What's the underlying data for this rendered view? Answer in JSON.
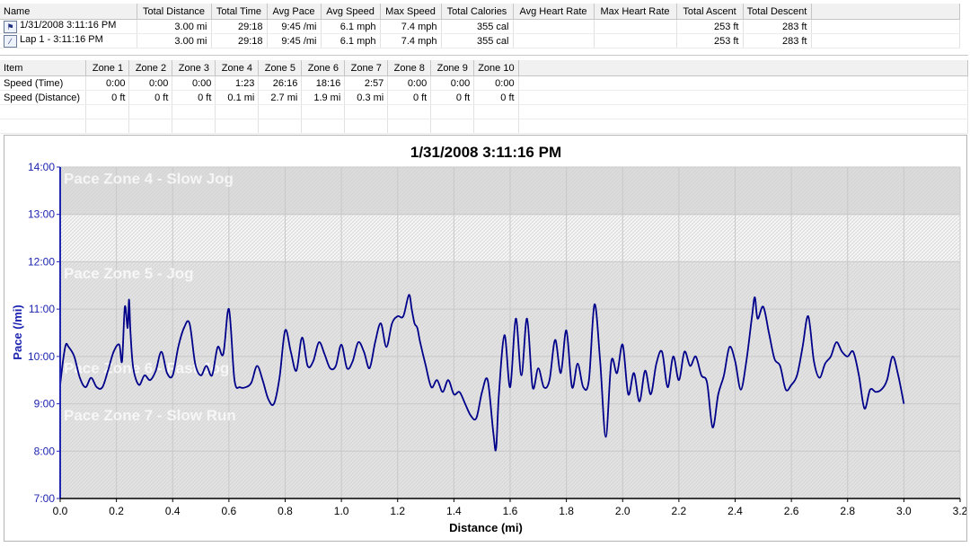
{
  "summary_table": {
    "columns": [
      "Name",
      "Total Distance",
      "Total Time",
      "Avg Pace",
      "Avg Speed",
      "Max Speed",
      "Total Calories",
      "Avg Heart Rate",
      "Max Heart Rate",
      "Total Ascent",
      "Total Descent"
    ],
    "rows": [
      {
        "icon": "runner-icon",
        "name": "1/31/2008 3:11:16 PM",
        "distance": "3.00 mi",
        "time": "29:18",
        "avg_pace": "9:45 /mi",
        "avg_speed": "6.1 mph",
        "max_speed": "7.4 mph",
        "calories": "355 cal",
        "avg_hr": "",
        "max_hr": "",
        "ascent": "253 ft",
        "descent": "283 ft"
      },
      {
        "icon": "lap-icon",
        "name": "Lap 1 - 3:11:16 PM",
        "distance": "3.00 mi",
        "time": "29:18",
        "avg_pace": "9:45 /mi",
        "avg_speed": "6.1 mph",
        "max_speed": "7.4 mph",
        "calories": "355 cal",
        "avg_hr": "",
        "max_hr": "",
        "ascent": "253 ft",
        "descent": "283 ft"
      }
    ]
  },
  "zone_table": {
    "columns": [
      "Item",
      "Zone 1",
      "Zone 2",
      "Zone 3",
      "Zone 4",
      "Zone 5",
      "Zone 6",
      "Zone 7",
      "Zone 8",
      "Zone 9",
      "Zone 10"
    ],
    "rows": [
      {
        "item": "Speed (Time)",
        "values": [
          "0:00",
          "0:00",
          "0:00",
          "1:23",
          "26:16",
          "18:16",
          "2:57",
          "0:00",
          "0:00",
          "0:00"
        ]
      },
      {
        "item": "Speed (Distance)",
        "values": [
          "0 ft",
          "0 ft",
          "0 ft",
          "0.1 mi",
          "2.7 mi",
          "1.9 mi",
          "0.3 mi",
          "0 ft",
          "0 ft",
          "0 ft"
        ]
      }
    ]
  },
  "chart_data": {
    "type": "line",
    "title": "1/31/2008 3:11:16 PM",
    "xlabel": "Distance (mi)",
    "ylabel": "Pace (/mi)",
    "xlim": [
      0,
      3.2
    ],
    "ylim": [
      7,
      14
    ],
    "x_ticks": [
      "0.0",
      "0.2",
      "0.4",
      "0.6",
      "0.8",
      "1.0",
      "1.2",
      "1.4",
      "1.6",
      "1.8",
      "2.0",
      "2.2",
      "2.4",
      "2.6",
      "2.8",
      "3.0",
      "3.2"
    ],
    "y_ticks": [
      "7:00",
      "8:00",
      "9:00",
      "10:00",
      "11:00",
      "12:00",
      "13:00",
      "14:00"
    ],
    "grid": true,
    "zones": [
      {
        "label": "Pace Zone 4 - Slow Jog",
        "from": 13,
        "to": 14
      },
      {
        "label": "",
        "from": 12,
        "to": 13
      },
      {
        "label": "Pace Zone 5 - Jog",
        "from": 11,
        "to": 12
      },
      {
        "label": "Pace Zone 6 - Fast Jog",
        "from": 9,
        "to": 10
      },
      {
        "label": "Pace Zone 7 - Slow Run",
        "from": 8,
        "to": 9
      }
    ],
    "zone_label_values": [
      13.8,
      11.8,
      9.8,
      8.8
    ],
    "zone_bands": [
      {
        "from": 13,
        "to": 14,
        "fill": "#dcdcdc"
      },
      {
        "from": 12,
        "to": 13,
        "fill": "#f7f7f7"
      },
      {
        "from": 7,
        "to": 12,
        "fill": "#e3e3e3"
      }
    ],
    "line_color": "#00008b",
    "axis_color": "#1c24b0",
    "series": [
      {
        "x": [
          0.0,
          0.01,
          0.02,
          0.03,
          0.05,
          0.07,
          0.09,
          0.11,
          0.13,
          0.15,
          0.17,
          0.19,
          0.21,
          0.22,
          0.23,
          0.24,
          0.245,
          0.25,
          0.26,
          0.28,
          0.3,
          0.32,
          0.34,
          0.36,
          0.38,
          0.4,
          0.42,
          0.44,
          0.46,
          0.48,
          0.5,
          0.52,
          0.54,
          0.56,
          0.58,
          0.6,
          0.62,
          0.64,
          0.66,
          0.68,
          0.7,
          0.72,
          0.74,
          0.76,
          0.78,
          0.8,
          0.82,
          0.84,
          0.86,
          0.88,
          0.9,
          0.92,
          0.94,
          0.96,
          0.98,
          1.0,
          1.02,
          1.04,
          1.06,
          1.08,
          1.1,
          1.12,
          1.14,
          1.16,
          1.18,
          1.2,
          1.22,
          1.24,
          1.25,
          1.26,
          1.27,
          1.28,
          1.3,
          1.32,
          1.34,
          1.36,
          1.38,
          1.4,
          1.42,
          1.44,
          1.46,
          1.48,
          1.5,
          1.52,
          1.54,
          1.55,
          1.56,
          1.58,
          1.6,
          1.62,
          1.64,
          1.66,
          1.68,
          1.7,
          1.72,
          1.74,
          1.76,
          1.78,
          1.8,
          1.82,
          1.84,
          1.86,
          1.88,
          1.9,
          1.92,
          1.94,
          1.96,
          1.98,
          2.0,
          2.02,
          2.04,
          2.06,
          2.08,
          2.1,
          2.12,
          2.14,
          2.16,
          2.18,
          2.2,
          2.22,
          2.24,
          2.26,
          2.28,
          2.3,
          2.32,
          2.34,
          2.36,
          2.38,
          2.4,
          2.42,
          2.44,
          2.46,
          2.47,
          2.48,
          2.5,
          2.52,
          2.54,
          2.56,
          2.58,
          2.6,
          2.62,
          2.64,
          2.66,
          2.68,
          2.7,
          2.72,
          2.74,
          2.76,
          2.78,
          2.8,
          2.82,
          2.84,
          2.86,
          2.88,
          2.9,
          2.92,
          2.94,
          2.96,
          2.98,
          3.0
        ],
        "y": [
          9.4,
          9.9,
          10.25,
          10.2,
          10.0,
          9.55,
          9.35,
          9.55,
          9.35,
          9.35,
          9.7,
          10.1,
          10.25,
          9.9,
          11.05,
          10.6,
          11.2,
          10.5,
          9.75,
          9.4,
          9.6,
          9.5,
          9.7,
          10.1,
          9.65,
          9.6,
          10.2,
          10.6,
          10.7,
          9.85,
          9.6,
          9.8,
          9.6,
          10.2,
          10.05,
          11.0,
          9.5,
          9.35,
          9.35,
          9.45,
          9.8,
          9.5,
          9.1,
          9.0,
          9.55,
          10.55,
          10.1,
          9.7,
          10.4,
          9.8,
          9.9,
          10.3,
          10.05,
          9.75,
          9.8,
          10.25,
          9.75,
          9.9,
          10.3,
          10.1,
          9.75,
          10.3,
          10.7,
          10.2,
          10.7,
          10.85,
          10.85,
          11.3,
          11.0,
          10.7,
          10.6,
          10.3,
          9.8,
          9.35,
          9.5,
          9.25,
          9.5,
          9.2,
          9.25,
          9.0,
          8.75,
          8.7,
          9.25,
          9.5,
          8.4,
          8.05,
          9.2,
          10.45,
          9.35,
          10.8,
          9.6,
          10.8,
          9.35,
          9.75,
          9.35,
          9.5,
          10.35,
          9.65,
          10.55,
          9.35,
          9.85,
          9.35,
          9.5,
          11.1,
          9.9,
          8.3,
          9.9,
          9.65,
          10.25,
          9.2,
          9.65,
          9.05,
          9.7,
          9.2,
          9.85,
          10.1,
          9.35,
          10.0,
          9.5,
          10.1,
          9.8,
          10.0,
          9.6,
          9.45,
          8.5,
          9.2,
          9.6,
          10.2,
          9.9,
          9.3,
          9.9,
          10.85,
          11.25,
          10.8,
          11.05,
          10.5,
          9.95,
          9.8,
          9.3,
          9.4,
          9.6,
          10.2,
          10.85,
          9.9,
          9.55,
          9.85,
          10.0,
          10.3,
          10.1,
          10.0,
          10.1,
          9.6,
          8.9,
          9.3,
          9.25,
          9.3,
          9.5,
          10.0,
          9.6,
          9.0
        ]
      }
    ]
  }
}
